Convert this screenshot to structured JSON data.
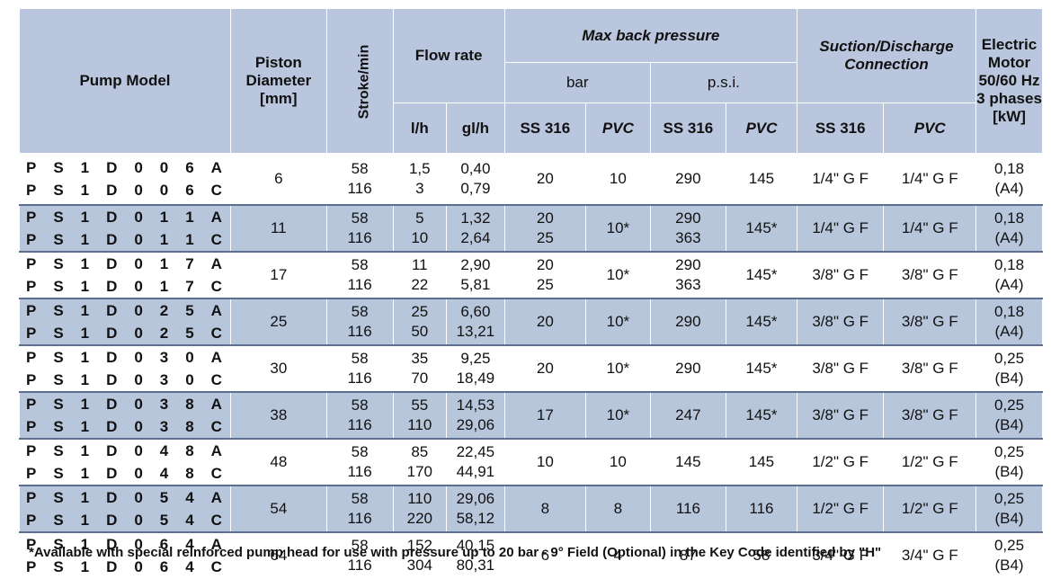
{
  "headers": {
    "pump_model": "Pump Model",
    "piston_diameter": "Piston\nDiameter\n[mm]",
    "stroke": "Stroke/min",
    "flow_rate": "Flow rate",
    "max_back_pressure": "Max back pressure",
    "bar": "bar",
    "psi": "p.s.i.",
    "suction": "Suction/Discharge\nConnection",
    "motor": "Electric\nMotor\n50/60 Hz\n3 phases\n[kW]",
    "lh": "l/h",
    "glh": "gl/h",
    "ss316": "SS 316",
    "pvc": "PVC"
  },
  "rows": [
    {
      "models": [
        "PS1D006A",
        "PS1D006C"
      ],
      "diameter": "6",
      "strokes": [
        "58",
        "116"
      ],
      "lh": [
        "1,5",
        "3"
      ],
      "glh": [
        "0,40",
        "0,79"
      ],
      "bar_ss": [
        "20"
      ],
      "bar_pvc": "10",
      "psi_ss": [
        "290"
      ],
      "psi_pvc": "145",
      "conn_ss": "1/4\" G F",
      "conn_pvc": "1/4\" G F",
      "motor": [
        "0,18",
        "(A4)"
      ]
    },
    {
      "models": [
        "PS1D011A",
        "PS1D011C"
      ],
      "diameter": "11",
      "strokes": [
        "58",
        "116"
      ],
      "lh": [
        "5",
        "10"
      ],
      "glh": [
        "1,32",
        "2,64"
      ],
      "bar_ss": [
        "20",
        "25"
      ],
      "bar_pvc": "10*",
      "psi_ss": [
        "290",
        "363"
      ],
      "psi_pvc": "145*",
      "conn_ss": "1/4\" G F",
      "conn_pvc": "1/4\" G F",
      "motor": [
        "0,18",
        "(A4)"
      ]
    },
    {
      "models": [
        "PS1D017A",
        "PS1D017C"
      ],
      "diameter": "17",
      "strokes": [
        "58",
        "116"
      ],
      "lh": [
        "11",
        "22"
      ],
      "glh": [
        "2,90",
        "5,81"
      ],
      "bar_ss": [
        "20",
        "25"
      ],
      "bar_pvc": "10*",
      "psi_ss": [
        "290",
        "363"
      ],
      "psi_pvc": "145*",
      "conn_ss": "3/8\" G F",
      "conn_pvc": "3/8\" G F",
      "motor": [
        "0,18",
        "(A4)"
      ]
    },
    {
      "models": [
        "PS1D025A",
        "PS1D025C"
      ],
      "diameter": "25",
      "strokes": [
        "58",
        "116"
      ],
      "lh": [
        "25",
        "50"
      ],
      "glh": [
        "6,60",
        "13,21"
      ],
      "bar_ss": [
        "20"
      ],
      "bar_pvc": "10*",
      "psi_ss": [
        "290"
      ],
      "psi_pvc": "145*",
      "conn_ss": "3/8\" G F",
      "conn_pvc": "3/8\" G F",
      "motor": [
        "0,18",
        "(A4)"
      ]
    },
    {
      "models": [
        "PS1D030A",
        "PS1D030C"
      ],
      "diameter": "30",
      "strokes": [
        "58",
        "116"
      ],
      "lh": [
        "35",
        "70"
      ],
      "glh": [
        "9,25",
        "18,49"
      ],
      "bar_ss": [
        "20"
      ],
      "bar_pvc": "10*",
      "psi_ss": [
        "290"
      ],
      "psi_pvc": "145*",
      "conn_ss": "3/8\" G F",
      "conn_pvc": "3/8\" G F",
      "motor": [
        "0,25",
        "(B4)"
      ]
    },
    {
      "models": [
        "PS1D038A",
        "PS1D038C"
      ],
      "diameter": "38",
      "strokes": [
        "58",
        "116"
      ],
      "lh": [
        "55",
        "110"
      ],
      "glh": [
        "14,53",
        "29,06"
      ],
      "bar_ss": [
        "17"
      ],
      "bar_pvc": "10*",
      "psi_ss": [
        "247"
      ],
      "psi_pvc": "145*",
      "conn_ss": "3/8\" G F",
      "conn_pvc": "3/8\" G F",
      "motor": [
        "0,25",
        "(B4)"
      ]
    },
    {
      "models": [
        "PS1D048A",
        "PS1D048C"
      ],
      "diameter": "48",
      "strokes": [
        "58",
        "116"
      ],
      "lh": [
        "85",
        "170"
      ],
      "glh": [
        "22,45",
        "44,91"
      ],
      "bar_ss": [
        "10"
      ],
      "bar_pvc": "10",
      "psi_ss": [
        "145"
      ],
      "psi_pvc": "145",
      "conn_ss": "1/2\" G F",
      "conn_pvc": "1/2\" G F",
      "motor": [
        "0,25",
        "(B4)"
      ]
    },
    {
      "models": [
        "PS1D054A",
        "PS1D054C"
      ],
      "diameter": "54",
      "strokes": [
        "58",
        "116"
      ],
      "lh": [
        "110",
        "220"
      ],
      "glh": [
        "29,06",
        "58,12"
      ],
      "bar_ss": [
        "8"
      ],
      "bar_pvc": "8",
      "psi_ss": [
        "116"
      ],
      "psi_pvc": "116",
      "conn_ss": "1/2\" G F",
      "conn_pvc": "1/2\" G F",
      "motor": [
        "0,25",
        "(B4)"
      ]
    },
    {
      "models": [
        "PS1D064A",
        "PS1D064C"
      ],
      "diameter": "64",
      "strokes": [
        "58",
        "116"
      ],
      "lh": [
        "152",
        "304"
      ],
      "glh": [
        "40,15",
        "80,31"
      ],
      "bar_ss": [
        "6"
      ],
      "bar_pvc": "4",
      "psi_ss": [
        "87"
      ],
      "psi_pvc": "58",
      "conn_ss": "3/4\" G F",
      "conn_pvc": "3/4\" G F",
      "motor": [
        "0,25",
        "(B4)"
      ]
    }
  ],
  "footnote": "*Available with special reinforced pump head  for use with pressure up to 20 bar - 9° Field (Optional) in the Key Code identified by \"H\"",
  "colors": {
    "header_bg": "#b9c6dd",
    "alt_row_bg": "#b8c6dc"
  }
}
